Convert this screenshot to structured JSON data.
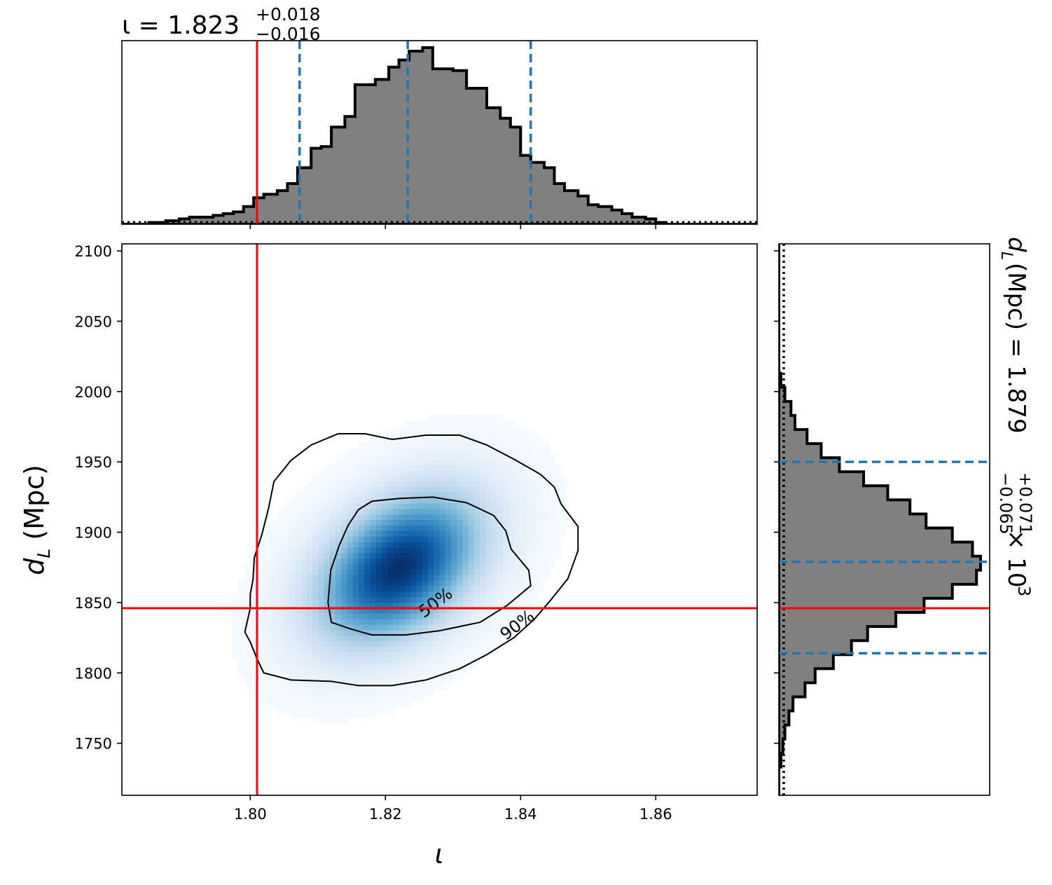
{
  "chart_data": {
    "type": "corner-plot",
    "top_title": {
      "symbol": "ι",
      "median": "1.823",
      "plus": "+0.018",
      "minus": "−0.016",
      "prefix": "ι = 1.823"
    },
    "right_title": {
      "prefix": "d",
      "sub": "L",
      "body": " (Mpc) = 1.879",
      "plus": "+0.071",
      "minus": "−0.065",
      "times": " × 10",
      "exp": "3"
    },
    "xlabel": "ι",
    "ylabel": {
      "main": "d",
      "sub": "L",
      "rest": " (Mpc)"
    },
    "x_axis": {
      "range": [
        1.781,
        1.875
      ],
      "ticks": [
        1.8,
        1.82,
        1.84,
        1.86
      ],
      "tick_labels": [
        "1.80",
        "1.82",
        "1.84",
        "1.86"
      ]
    },
    "y_axis": {
      "range": [
        1713,
        2105
      ],
      "ticks": [
        1750,
        1800,
        1850,
        1900,
        1950,
        2000,
        2050,
        2100
      ],
      "tick_labels": [
        "1750",
        "1800",
        "1850",
        "1900",
        "1950",
        "2000",
        "2050",
        "2100"
      ]
    },
    "injected": {
      "iota": 1.801,
      "dL": 1846
    },
    "iota_quantiles": [
      1.8073,
      1.8233,
      1.8415
    ],
    "dL_quantiles": [
      1814,
      1879,
      1950
    ],
    "density_peak": {
      "iota": 1.822,
      "dL": 1875,
      "sigma_iota": 0.0075,
      "sigma_dL": 33,
      "rho": 0.4
    },
    "contours": [
      {
        "label": "50%",
        "points": [
          [
            1.8115,
            1.85
          ],
          [
            1.812,
            1.836
          ],
          [
            1.815,
            1.831
          ],
          [
            1.818,
            1.827
          ],
          [
            1.823,
            1.827
          ],
          [
            1.828,
            1.83
          ],
          [
            1.834,
            1.836
          ],
          [
            1.838,
            1.848
          ],
          [
            1.8415,
            1.862
          ],
          [
            1.8412,
            1.873
          ],
          [
            1.8386,
            1.888
          ],
          [
            1.8378,
            1.901
          ],
          [
            1.836,
            1.912
          ],
          [
            1.832,
            1.921
          ],
          [
            1.827,
            1.925
          ],
          [
            1.822,
            1.924
          ],
          [
            1.818,
            1.922
          ],
          [
            1.816,
            1.916
          ],
          [
            1.8145,
            1.905
          ],
          [
            1.8132,
            1.891
          ],
          [
            1.8119,
            1.873
          ]
        ]
      },
      {
        "label": "90%",
        "points": [
          [
            1.8,
            1.846
          ],
          [
            1.7992,
            1.829
          ],
          [
            1.8,
            1.822
          ],
          [
            1.801,
            1.81
          ],
          [
            1.802,
            1.8
          ],
          [
            1.806,
            1.795
          ],
          [
            1.812,
            1.794
          ],
          [
            1.816,
            1.791
          ],
          [
            1.821,
            1.791
          ],
          [
            1.826,
            1.795
          ],
          [
            1.831,
            1.803
          ],
          [
            1.835,
            1.813
          ],
          [
            1.839,
            1.825
          ],
          [
            1.842,
            1.838
          ],
          [
            1.8445,
            1.852
          ],
          [
            1.847,
            1.867
          ],
          [
            1.8485,
            1.887
          ],
          [
            1.8485,
            1.904
          ],
          [
            1.846,
            1.92
          ],
          [
            1.845,
            1.932
          ],
          [
            1.843,
            1.941
          ],
          [
            1.839,
            1.952
          ],
          [
            1.835,
            1.962
          ],
          [
            1.831,
            1.969
          ],
          [
            1.826,
            1.969
          ],
          [
            1.821,
            1.966
          ],
          [
            1.817,
            1.97
          ],
          [
            1.813,
            1.97
          ],
          [
            1.809,
            1.962
          ],
          [
            1.806,
            1.951
          ],
          [
            1.8035,
            1.936
          ],
          [
            1.8027,
            1.917
          ],
          [
            1.8017,
            1.898
          ],
          [
            1.8006,
            1.882
          ],
          [
            1.8004,
            1.866
          ],
          [
            1.8,
            1.856
          ]
        ]
      }
    ],
    "iota_hist": {
      "bin_edges": [
        1.781,
        1.7825,
        1.785,
        1.7875,
        1.7895,
        1.791,
        1.7925,
        1.7945,
        1.796,
        1.7975,
        1.799,
        1.8005,
        1.802,
        1.804,
        1.8055,
        1.807,
        1.809,
        1.8105,
        1.812,
        1.814,
        1.8155,
        1.817,
        1.8185,
        1.8205,
        1.822,
        1.8235,
        1.8255,
        1.827,
        1.8285,
        1.83,
        1.832,
        1.8335,
        1.835,
        1.837,
        1.8385,
        1.84,
        1.8415,
        1.8435,
        1.845,
        1.8465,
        1.8485,
        1.85,
        1.8515,
        1.8535,
        1.855,
        1.8565,
        1.8585,
        1.86,
        1.8615,
        1.863,
        1.875
      ],
      "counts": [
        0.0,
        0.0,
        0.01,
        0.02,
        0.03,
        0.04,
        0.04,
        0.05,
        0.06,
        0.07,
        0.1,
        0.15,
        0.17,
        0.19,
        0.23,
        0.32,
        0.43,
        0.44,
        0.55,
        0.61,
        0.79,
        0.79,
        0.82,
        0.89,
        0.93,
        0.98,
        1.0,
        0.88,
        0.88,
        0.87,
        0.77,
        0.77,
        0.66,
        0.6,
        0.55,
        0.39,
        0.35,
        0.32,
        0.23,
        0.19,
        0.16,
        0.11,
        0.1,
        0.08,
        0.06,
        0.04,
        0.03,
        0.01,
        0.0,
        0.0
      ]
    },
    "dL_hist": {
      "bin_edges": [
        1713,
        1723,
        1733,
        1743,
        1753,
        1763,
        1773,
        1783,
        1793,
        1803,
        1813,
        1823,
        1833,
        1843,
        1853,
        1863,
        1873,
        1883,
        1893,
        1903,
        1913,
        1923,
        1933,
        1943,
        1953,
        1963,
        1973,
        1983,
        1993,
        2003,
        2013,
        2023,
        2105
      ],
      "counts": [
        0.0,
        0.0,
        0.01,
        0.02,
        0.03,
        0.05,
        0.07,
        0.13,
        0.18,
        0.27,
        0.36,
        0.44,
        0.58,
        0.72,
        0.86,
        0.98,
        1.0,
        0.96,
        0.86,
        0.73,
        0.65,
        0.54,
        0.42,
        0.3,
        0.21,
        0.14,
        0.08,
        0.06,
        0.03,
        0.01,
        0.0,
        0.0
      ]
    },
    "colors": {
      "truth": "#ff0000",
      "quantile": "#1f77b4",
      "hist_fill": "#808080",
      "hist_edge": "#000000",
      "cmap": "Blues"
    },
    "grid": false
  }
}
